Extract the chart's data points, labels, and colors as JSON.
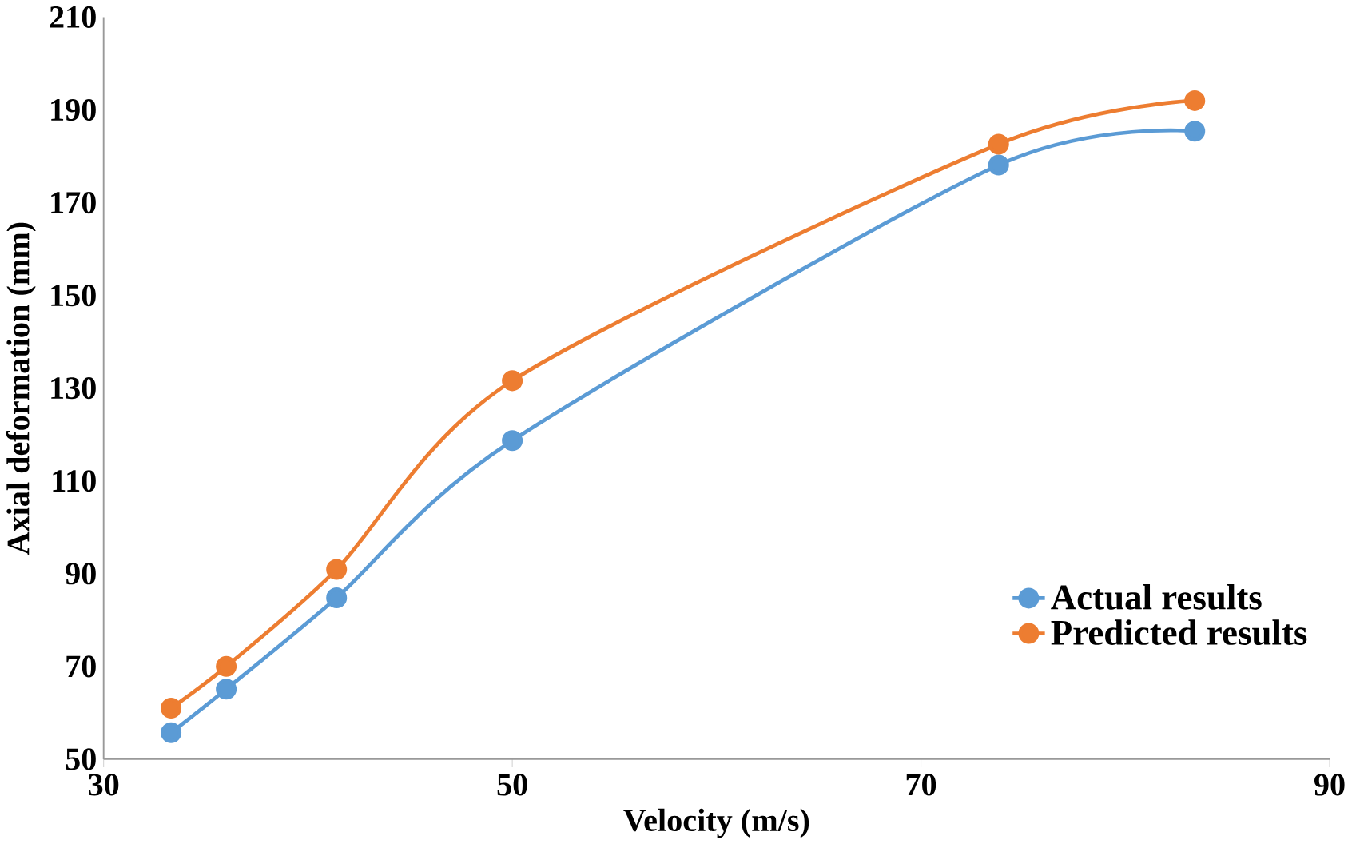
{
  "chart_data": {
    "type": "line",
    "xlabel": "Velocity (m/s)",
    "ylabel": "Axial deformation (mm)",
    "xlim": [
      30,
      90
    ],
    "xticks": [
      30,
      50,
      70,
      90
    ],
    "ylim": [
      50,
      210
    ],
    "yticks": [
      50,
      70,
      90,
      110,
      130,
      150,
      170,
      190,
      210
    ],
    "x": [
      33.3,
      36,
      41.4,
      50,
      73.8,
      83.4
    ],
    "series": [
      {
        "name": "Actual results",
        "color": "#5b9bd5",
        "values": [
          55.7,
          65.1,
          84.8,
          118.7,
          178.1,
          185.4
        ]
      },
      {
        "name": "Predicted results",
        "color": "#ed7d31",
        "values": [
          61,
          70,
          90.9,
          131.6,
          182.6,
          192
        ]
      }
    ],
    "marker": "circle",
    "grid": false,
    "legend": "bottom right"
  }
}
